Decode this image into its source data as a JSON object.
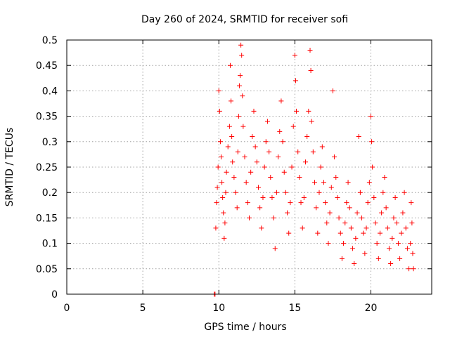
{
  "chart_data": {
    "type": "scatter",
    "title": "Day 260 of 2024, SRMTID for receiver sofi",
    "xlabel": "GPS time / hours",
    "ylabel": "SRMTID / TECUs",
    "xlim": [
      0,
      24
    ],
    "ylim": [
      0,
      0.5
    ],
    "xticks": [
      0,
      5,
      10,
      15,
      20
    ],
    "xtick_labels": [
      "0",
      "5",
      "10",
      "15",
      "20"
    ],
    "yticks": [
      0,
      0.05,
      0.1,
      0.15,
      0.2,
      0.25,
      0.3,
      0.35,
      0.4,
      0.45,
      0.5
    ],
    "ytick_labels": [
      "0",
      "0.05",
      "0.1",
      "0.15",
      "0.2",
      "0.25",
      "0.3",
      "0.35",
      "0.4",
      "0.45",
      "0.5"
    ],
    "grid": true,
    "marker": "plus",
    "color": "#ff0000",
    "series": [
      {
        "name": "SRMTID",
        "points": [
          [
            9.7,
            0.0
          ],
          [
            9.75,
            0.0
          ],
          [
            9.8,
            0.13
          ],
          [
            9.85,
            0.18
          ],
          [
            9.9,
            0.21
          ],
          [
            9.95,
            0.25
          ],
          [
            10.0,
            0.4
          ],
          [
            10.05,
            0.36
          ],
          [
            10.1,
            0.3
          ],
          [
            10.15,
            0.27
          ],
          [
            10.2,
            0.22
          ],
          [
            10.25,
            0.19
          ],
          [
            10.3,
            0.16
          ],
          [
            10.35,
            0.11
          ],
          [
            10.4,
            0.14
          ],
          [
            10.45,
            0.2
          ],
          [
            10.5,
            0.24
          ],
          [
            10.6,
            0.29
          ],
          [
            10.7,
            0.33
          ],
          [
            10.75,
            0.45
          ],
          [
            10.8,
            0.38
          ],
          [
            10.85,
            0.31
          ],
          [
            10.9,
            0.26
          ],
          [
            11.0,
            0.23
          ],
          [
            11.1,
            0.2
          ],
          [
            11.2,
            0.17
          ],
          [
            11.25,
            0.28
          ],
          [
            11.3,
            0.35
          ],
          [
            11.35,
            0.41
          ],
          [
            11.4,
            0.43
          ],
          [
            11.45,
            0.49
          ],
          [
            11.5,
            0.47
          ],
          [
            11.55,
            0.39
          ],
          [
            11.6,
            0.33
          ],
          [
            11.7,
            0.27
          ],
          [
            11.8,
            0.22
          ],
          [
            11.9,
            0.18
          ],
          [
            12.0,
            0.15
          ],
          [
            12.1,
            0.24
          ],
          [
            12.2,
            0.31
          ],
          [
            12.3,
            0.36
          ],
          [
            12.4,
            0.29
          ],
          [
            12.5,
            0.26
          ],
          [
            12.6,
            0.21
          ],
          [
            12.7,
            0.17
          ],
          [
            12.8,
            0.13
          ],
          [
            12.9,
            0.19
          ],
          [
            13.0,
            0.25
          ],
          [
            13.1,
            0.3
          ],
          [
            13.2,
            0.34
          ],
          [
            13.3,
            0.28
          ],
          [
            13.4,
            0.23
          ],
          [
            13.5,
            0.19
          ],
          [
            13.6,
            0.15
          ],
          [
            13.7,
            0.09
          ],
          [
            13.8,
            0.2
          ],
          [
            13.9,
            0.27
          ],
          [
            14.0,
            0.32
          ],
          [
            14.1,
            0.38
          ],
          [
            14.2,
            0.3
          ],
          [
            14.3,
            0.24
          ],
          [
            14.4,
            0.2
          ],
          [
            14.5,
            0.16
          ],
          [
            14.6,
            0.12
          ],
          [
            14.7,
            0.18
          ],
          [
            14.8,
            0.25
          ],
          [
            14.9,
            0.33
          ],
          [
            15.0,
            0.47
          ],
          [
            15.05,
            0.42
          ],
          [
            15.1,
            0.36
          ],
          [
            15.2,
            0.28
          ],
          [
            15.3,
            0.23
          ],
          [
            15.4,
            0.18
          ],
          [
            15.5,
            0.13
          ],
          [
            15.6,
            0.19
          ],
          [
            15.7,
            0.26
          ],
          [
            15.8,
            0.31
          ],
          [
            15.9,
            0.36
          ],
          [
            16.0,
            0.48
          ],
          [
            16.05,
            0.44
          ],
          [
            16.1,
            0.34
          ],
          [
            16.2,
            0.28
          ],
          [
            16.3,
            0.22
          ],
          [
            16.4,
            0.17
          ],
          [
            16.5,
            0.12
          ],
          [
            16.6,
            0.2
          ],
          [
            16.7,
            0.25
          ],
          [
            16.8,
            0.29
          ],
          [
            16.9,
            0.22
          ],
          [
            17.0,
            0.18
          ],
          [
            17.1,
            0.14
          ],
          [
            17.2,
            0.1
          ],
          [
            17.3,
            0.16
          ],
          [
            17.4,
            0.21
          ],
          [
            17.5,
            0.4
          ],
          [
            17.6,
            0.27
          ],
          [
            17.7,
            0.23
          ],
          [
            17.8,
            0.19
          ],
          [
            17.9,
            0.15
          ],
          [
            18.0,
            0.12
          ],
          [
            18.1,
            0.07
          ],
          [
            18.2,
            0.1
          ],
          [
            18.3,
            0.14
          ],
          [
            18.4,
            0.18
          ],
          [
            18.5,
            0.22
          ],
          [
            18.6,
            0.17
          ],
          [
            18.7,
            0.13
          ],
          [
            18.8,
            0.09
          ],
          [
            18.9,
            0.06
          ],
          [
            19.0,
            0.11
          ],
          [
            19.1,
            0.16
          ],
          [
            19.2,
            0.31
          ],
          [
            19.3,
            0.2
          ],
          [
            19.4,
            0.15
          ],
          [
            19.5,
            0.12
          ],
          [
            19.6,
            0.08
          ],
          [
            19.7,
            0.13
          ],
          [
            19.8,
            0.18
          ],
          [
            19.9,
            0.22
          ],
          [
            20.0,
            0.35
          ],
          [
            20.05,
            0.3
          ],
          [
            20.1,
            0.25
          ],
          [
            20.2,
            0.19
          ],
          [
            20.3,
            0.14
          ],
          [
            20.4,
            0.1
          ],
          [
            20.5,
            0.07
          ],
          [
            20.6,
            0.12
          ],
          [
            20.7,
            0.16
          ],
          [
            20.8,
            0.2
          ],
          [
            20.9,
            0.23
          ],
          [
            21.0,
            0.17
          ],
          [
            21.1,
            0.13
          ],
          [
            21.2,
            0.09
          ],
          [
            21.3,
            0.06
          ],
          [
            21.4,
            0.11
          ],
          [
            21.5,
            0.15
          ],
          [
            21.6,
            0.19
          ],
          [
            21.7,
            0.14
          ],
          [
            21.8,
            0.1
          ],
          [
            21.9,
            0.07
          ],
          [
            22.0,
            0.12
          ],
          [
            22.1,
            0.16
          ],
          [
            22.2,
            0.2
          ],
          [
            22.3,
            0.13
          ],
          [
            22.4,
            0.09
          ],
          [
            22.5,
            0.05
          ],
          [
            22.6,
            0.1
          ],
          [
            22.65,
            0.18
          ],
          [
            22.7,
            0.14
          ],
          [
            22.75,
            0.08
          ],
          [
            22.8,
            0.05
          ]
        ]
      }
    ]
  }
}
